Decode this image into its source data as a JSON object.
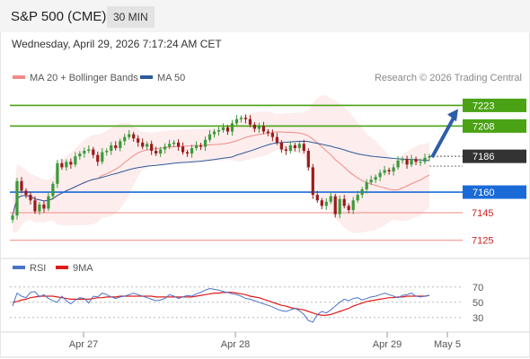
{
  "header": {
    "symbol": "S&P 500 (CME)",
    "timeframe": "30 MIN"
  },
  "datetime": "Wednesday, April 29, 2026 7:17:24 AM CET",
  "legend": {
    "ma20": {
      "label": "MA 20 + Bollinger Bands",
      "color": "#f08a86"
    },
    "ma50": {
      "label": "MA 50",
      "color": "#2e5a9a"
    }
  },
  "copyright": "Research © 2026 Trading Central",
  "rsi_legend": {
    "rsi": {
      "label": "RSI",
      "color": "#4a73c9"
    },
    "ma9": {
      "label": "9MA",
      "color": "#e01b1b"
    }
  },
  "colors": {
    "up": "#3a9a3a",
    "down": "#9a1a1a",
    "resistance": "#4aa214",
    "support": "#1a6bd8",
    "current": "#333333",
    "low": "#f08a86",
    "arrow": "#2e5da8"
  },
  "chart_data": [
    {
      "type": "candlestick",
      "ylim": [
        7117,
        7235
      ],
      "x_ticks": [
        "Apr 27",
        "Apr 28",
        "Apr 29",
        "May 5"
      ],
      "levels": [
        {
          "value": 7223,
          "label": "7223",
          "kind": "resistance"
        },
        {
          "value": 7208,
          "label": "7208",
          "kind": "resistance"
        },
        {
          "value": 7186,
          "label": "7186",
          "kind": "current"
        },
        {
          "value": 7160,
          "label": "7160",
          "kind": "support"
        },
        {
          "value": 7145,
          "label": "7145",
          "kind": "low"
        },
        {
          "value": 7125,
          "label": "7125",
          "kind": "low"
        }
      ],
      "target_arrow": {
        "from": 7186,
        "to": 7223
      },
      "close": [
        7143,
        7168,
        7161,
        7158,
        7154,
        7146,
        7151,
        7148,
        7157,
        7166,
        7181,
        7178,
        7182,
        7180,
        7186,
        7188,
        7190,
        7191,
        7187,
        7182,
        7189,
        7190,
        7194,
        7192,
        7197,
        7200,
        7202,
        7199,
        7196,
        7193,
        7195,
        7190,
        7188,
        7191,
        7193,
        7195,
        7196,
        7193,
        7189,
        7188,
        7192,
        7194,
        7193,
        7198,
        7202,
        7204,
        7205,
        7207,
        7204,
        7210,
        7213,
        7214,
        7213,
        7209,
        7206,
        7208,
        7204,
        7203,
        7200,
        7196,
        7191,
        7190,
        7194,
        7192,
        7195,
        7190,
        7178,
        7158,
        7154,
        7150,
        7153,
        7157,
        7144,
        7155,
        7150,
        7147,
        7154,
        7158,
        7162,
        7167,
        7169,
        7171,
        7174,
        7176,
        7175,
        7178,
        7183,
        7184,
        7180,
        7184,
        7182,
        7182,
        7185,
        7186
      ],
      "rsi": {
        "ylim": [
          18,
          78
        ],
        "levels": [
          70,
          50,
          30
        ],
        "rsi_values": [
          45,
          62,
          58,
          56,
          63,
          64,
          57,
          60,
          55,
          52,
          50,
          58,
          52,
          48,
          53,
          56,
          55,
          49,
          58,
          57,
          62,
          60,
          57,
          55,
          57,
          58,
          60,
          62,
          60,
          58,
          56,
          54,
          52,
          53,
          55,
          60,
          58,
          55,
          57,
          59,
          58,
          61,
          63,
          66,
          68,
          67,
          66,
          64,
          63,
          61,
          60,
          58,
          55,
          54,
          52,
          50,
          48,
          46,
          44,
          41,
          39,
          38,
          40,
          42,
          39,
          34,
          26,
          24,
          34,
          38,
          36,
          40,
          45,
          50,
          54,
          52,
          55,
          56,
          53,
          55,
          57,
          58,
          60,
          62,
          60,
          58,
          56,
          59,
          60,
          62,
          58,
          57,
          58,
          59
        ],
        "ma9_values": [
          50,
          51,
          53,
          54,
          56,
          57,
          58,
          58,
          58,
          58,
          57,
          56,
          55,
          54,
          54,
          54,
          54,
          54,
          55,
          56,
          56,
          57,
          57,
          57,
          58,
          58,
          58,
          58,
          58,
          58,
          58,
          58,
          57,
          57,
          57,
          57,
          57,
          57,
          57,
          57,
          57,
          58,
          59,
          60,
          61,
          62,
          62,
          63,
          63,
          63,
          62,
          61,
          60,
          58,
          57,
          56,
          54,
          52,
          50,
          48,
          46,
          45,
          43,
          42,
          41,
          40,
          38,
          36,
          34,
          33,
          33,
          34,
          36,
          38,
          40,
          42,
          45,
          47,
          49,
          51,
          52,
          53,
          54,
          55,
          56,
          56,
          57,
          57,
          58,
          58,
          58,
          58,
          58,
          59
        ]
      }
    }
  ]
}
